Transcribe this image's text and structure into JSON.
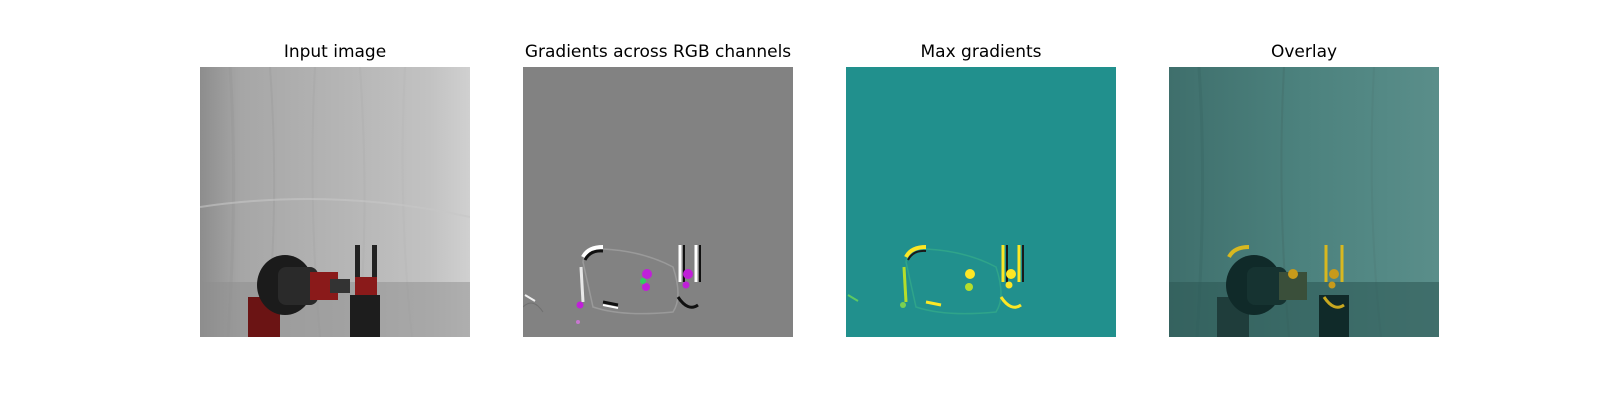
{
  "figure": {
    "panels": [
      {
        "title": "Input image",
        "content": "photo of a white curtain background with a robot arm (black and red) and a gripper in the lower portion"
      },
      {
        "title": "Gradients across RGB channels",
        "content": "mostly gray saliency map with edge outlines and magenta highlights around the gripper and arm"
      },
      {
        "title": "Max gradients",
        "content": "teal saliency map with yellow highlights along robot edges and gripper"
      },
      {
        "title": "Overlay",
        "content": "input image tinted teal with yellow highlights over the robot arm and gripper"
      }
    ]
  },
  "colors": {
    "background": "#ffffff",
    "gradient_gray": "#808080",
    "max_teal": "#21908d",
    "overlay_teal": "#4a807c",
    "highlight_yellow": "#fde725",
    "highlight_magenta": "#c020d8",
    "robot_red": "#8a1a1a"
  }
}
